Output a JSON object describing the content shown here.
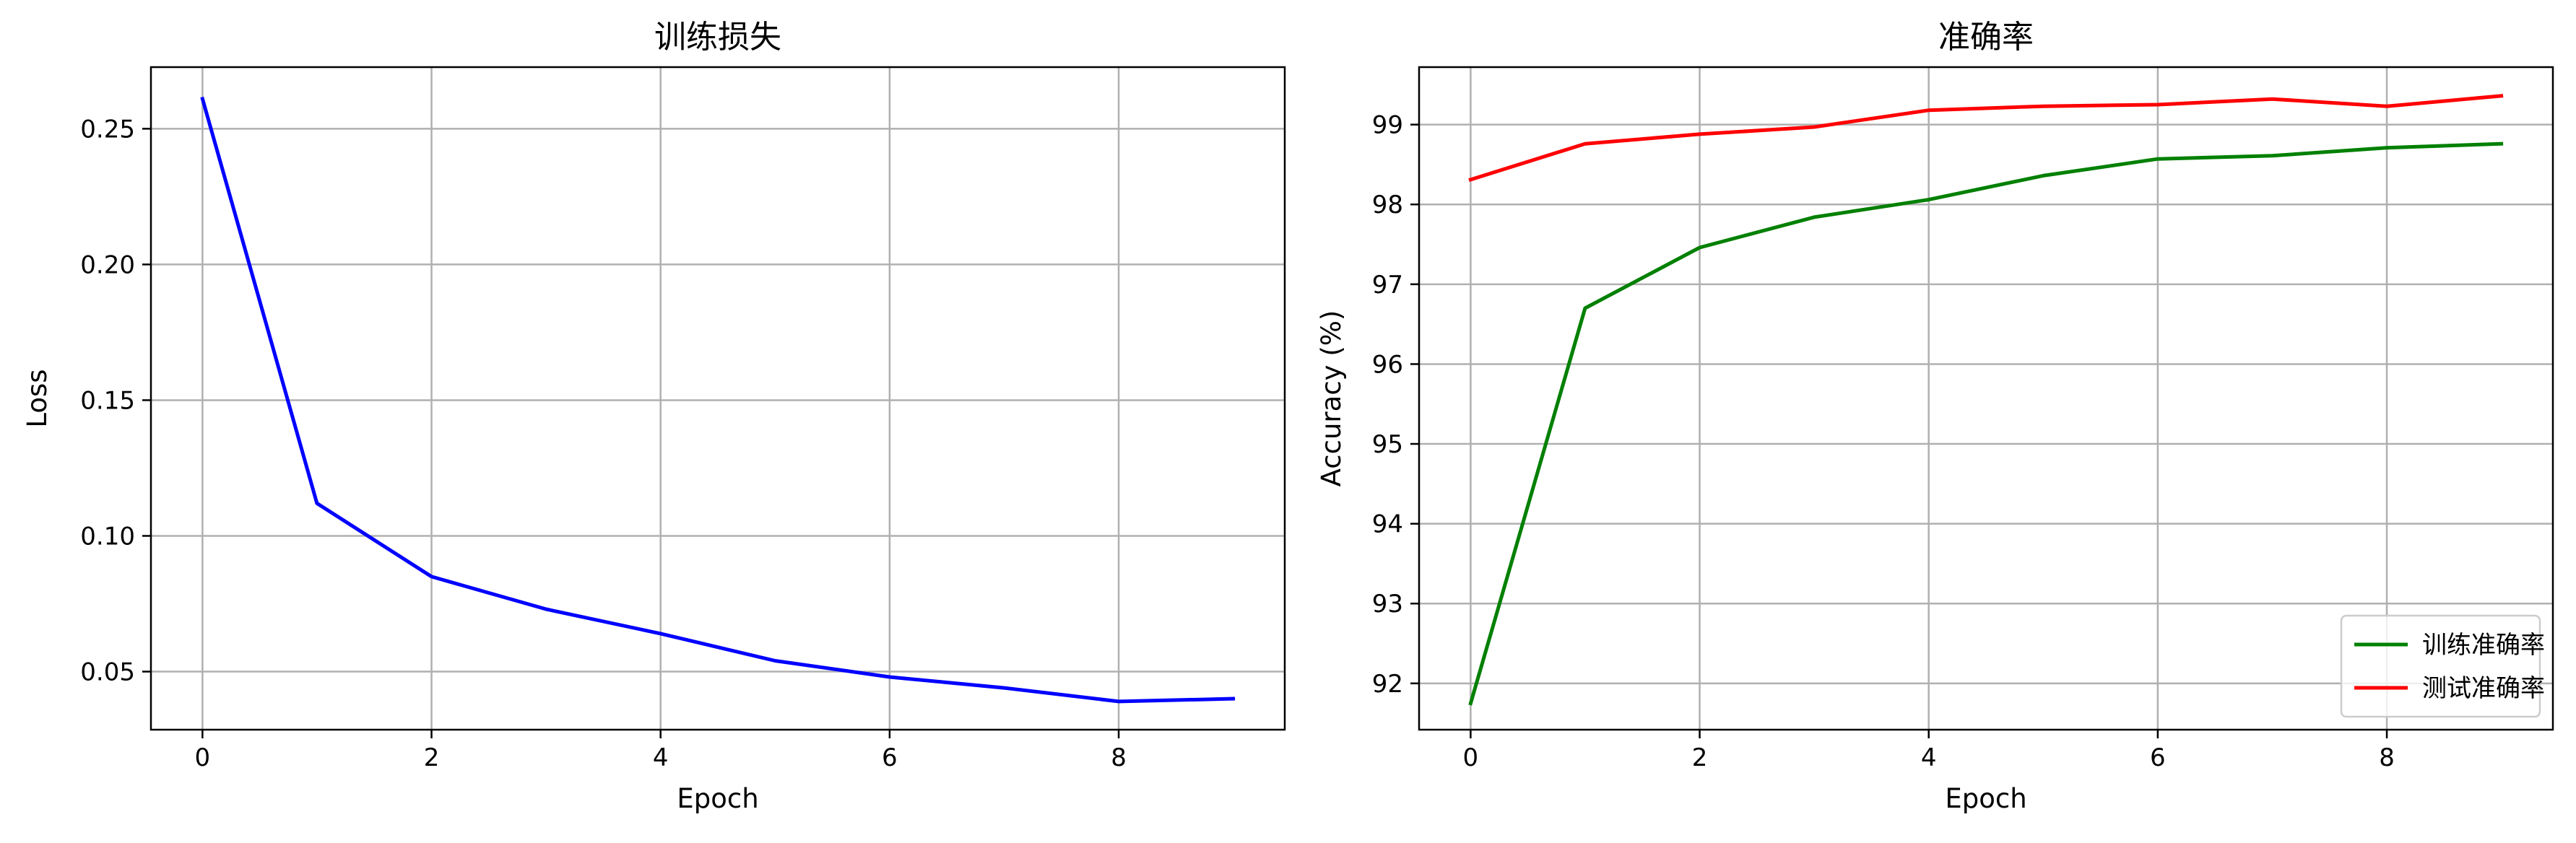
{
  "colors": {
    "blue": "#0000ff",
    "green": "#008000",
    "red": "#ff0000",
    "grid": "#b0b0b0"
  },
  "chart_data": [
    {
      "type": "line",
      "title": "训练损失",
      "xlabel": "Epoch",
      "ylabel": "Loss",
      "grid": true,
      "xlim": [
        -0.45,
        9.45
      ],
      "ylim": [
        0.0286,
        0.2727
      ],
      "xticks": [
        0,
        2,
        4,
        6,
        8
      ],
      "yticks": [
        0.05,
        0.1,
        0.15,
        0.2,
        0.25
      ],
      "ytick_labels": [
        "0.05",
        "0.10",
        "0.15",
        "0.20",
        "0.25"
      ],
      "x": [
        0,
        1,
        2,
        3,
        4,
        5,
        6,
        7,
        8,
        9
      ],
      "series": [
        {
          "color": "#0000ff",
          "values": [
            0.261,
            0.112,
            0.085,
            0.073,
            0.064,
            0.054,
            0.048,
            0.044,
            0.039,
            0.04
          ]
        }
      ],
      "legend": null
    },
    {
      "type": "line",
      "title": "准确率",
      "xlabel": "Epoch",
      "ylabel": "Accuracy (%)",
      "grid": true,
      "xlim": [
        -0.45,
        9.45
      ],
      "ylim": [
        91.42,
        99.72
      ],
      "xticks": [
        0,
        2,
        4,
        6,
        8
      ],
      "yticks": [
        92,
        93,
        94,
        95,
        96,
        97,
        98,
        99
      ],
      "ytick_labels": [
        "92",
        "93",
        "94",
        "95",
        "96",
        "97",
        "98",
        "99"
      ],
      "x": [
        0,
        1,
        2,
        3,
        4,
        5,
        6,
        7,
        8,
        9
      ],
      "series": [
        {
          "name": "训练准确率",
          "color": "#008000",
          "values": [
            91.75,
            96.7,
            97.46,
            97.84,
            98.06,
            98.36,
            98.57,
            98.61,
            98.71,
            98.76
          ]
        },
        {
          "name": "测试准确率",
          "color": "#ff0000",
          "values": [
            98.31,
            98.76,
            98.88,
            98.97,
            99.18,
            99.23,
            99.25,
            99.32,
            99.23,
            99.36
          ]
        }
      ],
      "legend": "lower right"
    }
  ]
}
